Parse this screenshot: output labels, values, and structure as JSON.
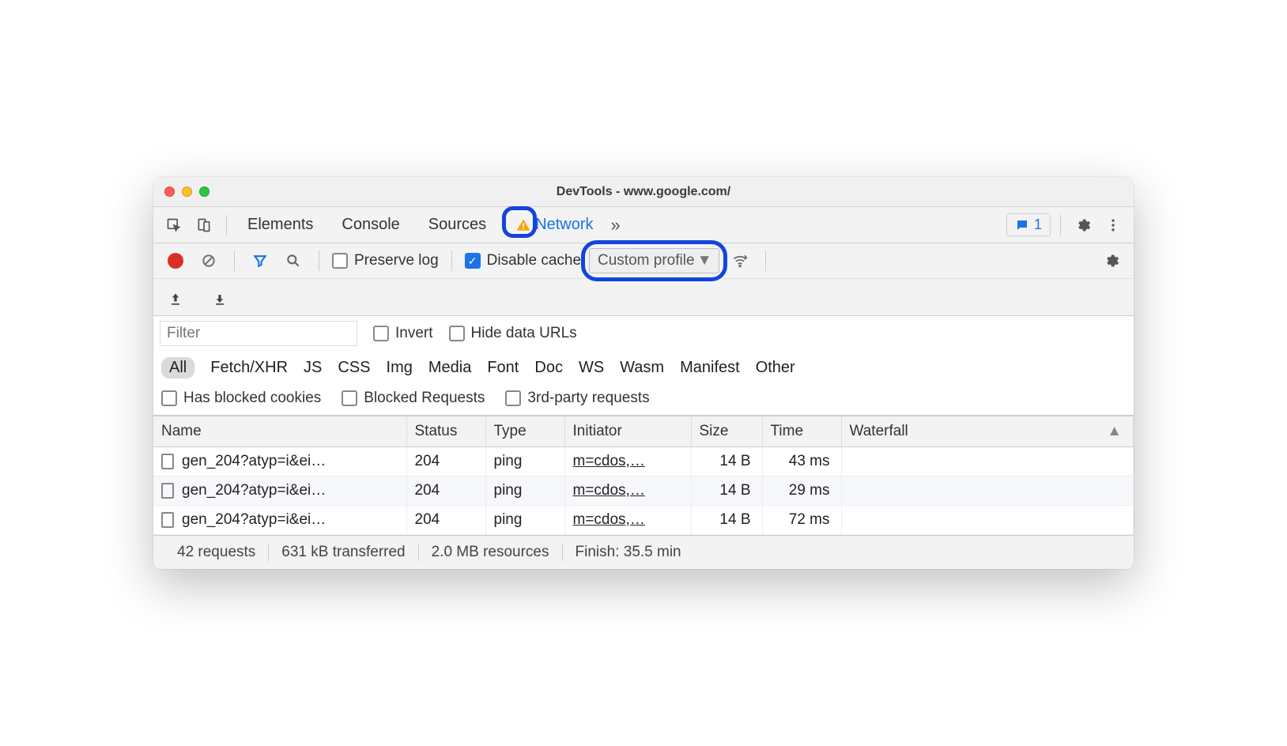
{
  "window": {
    "title": "DevTools - www.google.com/"
  },
  "tabs": {
    "items": [
      "Elements",
      "Console",
      "Sources",
      "Network"
    ],
    "active": "Network"
  },
  "issues": {
    "count": "1"
  },
  "toolbar": {
    "preserve_log": "Preserve log",
    "disable_cache": "Disable cache",
    "throttle_selected": "Custom profile"
  },
  "filter": {
    "placeholder": "Filter",
    "invert": "Invert",
    "hide_data_urls": "Hide data URLs",
    "types": [
      "All",
      "Fetch/XHR",
      "JS",
      "CSS",
      "Img",
      "Media",
      "Font",
      "Doc",
      "WS",
      "Wasm",
      "Manifest",
      "Other"
    ],
    "has_blocked_cookies": "Has blocked cookies",
    "blocked_requests": "Blocked Requests",
    "third_party": "3rd-party requests"
  },
  "table": {
    "columns": [
      "Name",
      "Status",
      "Type",
      "Initiator",
      "Size",
      "Time",
      "Waterfall"
    ],
    "rows": [
      {
        "name": "gen_204?atyp=i&ei…",
        "status": "204",
        "type": "ping",
        "initiator": "m=cdos,…",
        "size": "14 B",
        "time": "43 ms"
      },
      {
        "name": "gen_204?atyp=i&ei…",
        "status": "204",
        "type": "ping",
        "initiator": "m=cdos,…",
        "size": "14 B",
        "time": "29 ms"
      },
      {
        "name": "gen_204?atyp=i&ei…",
        "status": "204",
        "type": "ping",
        "initiator": "m=cdos,…",
        "size": "14 B",
        "time": "72 ms"
      }
    ]
  },
  "status": {
    "requests": "42 requests",
    "transferred": "631 kB transferred",
    "resources": "2.0 MB resources",
    "finish": "Finish: 35.5 min"
  },
  "colors": {
    "accent": "#1a73e8",
    "highlight_ring": "#1344dc",
    "record": "#d93025"
  }
}
